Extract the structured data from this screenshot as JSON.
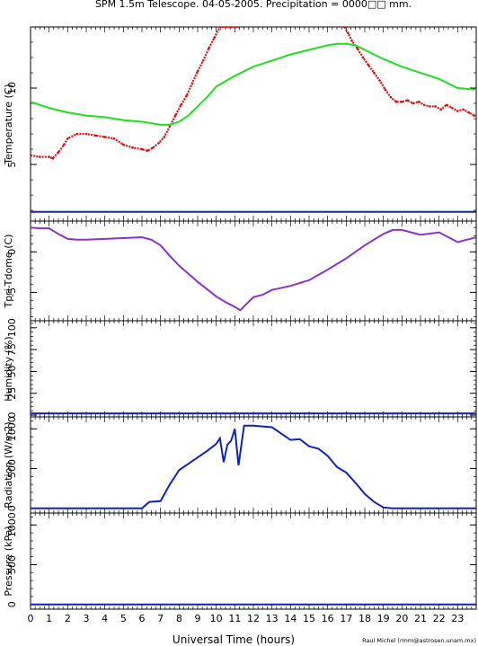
{
  "title": "SPM 1.5m Telescope. 04-05-2005. Precipitation = 0000□□ mm.",
  "credit": "Raul Michel (rmm@astrosen.unam.mx)",
  "xlabel": "Universal Time (hours)",
  "x_ticks": [
    "0",
    "1",
    "2",
    "3",
    "4",
    "5",
    "6",
    "7",
    "8",
    "9",
    "10",
    "11",
    "12",
    "13",
    "14",
    "15",
    "16",
    "17",
    "18",
    "19",
    "20",
    "21",
    "22",
    "23"
  ],
  "colors": {
    "red": "#dd1111",
    "green": "#22dd22",
    "blue": "#1122bb",
    "purple": "#8833cc",
    "axis": "#000000"
  },
  "chart_data": [
    {
      "type": "line",
      "ylabel": "Temperature (C)",
      "xlim": [
        0,
        24
      ],
      "ylim": [
        1.3,
        14
      ],
      "y_ticks": [
        "5",
        "10"
      ],
      "series": [
        {
          "color": "red",
          "style": "dots",
          "x": [
            0.0,
            0.5,
            1.0,
            1.2,
            1.5,
            1.8,
            2.0,
            2.5,
            3.0,
            3.5,
            4.0,
            4.5,
            5.0,
            5.5,
            6.0,
            6.3,
            6.6,
            6.9,
            7.2,
            7.5,
            7.8,
            8.1,
            8.4,
            8.7,
            9.0,
            9.3,
            9.6,
            9.9,
            10.2,
            10.5,
            10.8,
            11.1
          ],
          "y": [
            5.6,
            5.5,
            5.5,
            5.4,
            5.8,
            6.3,
            6.7,
            7.0,
            7.0,
            6.9,
            6.8,
            6.7,
            6.3,
            6.1,
            6.0,
            5.9,
            6.1,
            6.4,
            6.8,
            7.5,
            8.2,
            8.9,
            9.5,
            10.3,
            11.1,
            11.8,
            12.6,
            13.3,
            14.0,
            14.0,
            14.0,
            14.0
          ]
        },
        {
          "color": "red",
          "style": "dots",
          "x": [
            16.9,
            17.1,
            17.3,
            17.6,
            17.9,
            18.2,
            18.5,
            18.8,
            19.1,
            19.4,
            19.7,
            20.0,
            20.3,
            20.6,
            20.9,
            21.2,
            21.5,
            21.8,
            22.1,
            22.4,
            22.7,
            23.0,
            23.3,
            23.6,
            23.9
          ],
          "y": [
            14.0,
            13.6,
            13.1,
            12.6,
            12.0,
            11.5,
            11.0,
            10.5,
            9.9,
            9.4,
            9.1,
            9.1,
            9.2,
            9.0,
            9.1,
            8.9,
            8.8,
            8.8,
            8.6,
            8.9,
            8.7,
            8.5,
            8.6,
            8.4,
            8.2
          ]
        },
        {
          "color": "green",
          "style": "line",
          "x": [
            0,
            1,
            2,
            3,
            4,
            5,
            6,
            7,
            7.5,
            8,
            8.5,
            9,
            9.5,
            10,
            11,
            12,
            13,
            14,
            15,
            16,
            16.5,
            17,
            17.5,
            18,
            19,
            20,
            21,
            22,
            23,
            24
          ],
          "y": [
            9.1,
            8.7,
            8.4,
            8.2,
            8.1,
            7.9,
            7.8,
            7.6,
            7.6,
            7.8,
            8.2,
            8.8,
            9.4,
            10.1,
            10.8,
            11.4,
            11.8,
            12.2,
            12.5,
            12.8,
            12.9,
            12.9,
            12.8,
            12.5,
            11.9,
            11.4,
            11.0,
            10.6,
            10.0,
            9.9
          ]
        },
        {
          "color": "blue",
          "style": "line",
          "x": [
            0,
            24
          ],
          "y": [
            1.9,
            1.9
          ]
        }
      ]
    },
    {
      "type": "line",
      "ylabel": "Tpri-Tdome (C)",
      "xlim": [
        0,
        24
      ],
      "ylim": [
        -8.5,
        3.8
      ],
      "y_ticks": [
        "-5",
        "0"
      ],
      "series": [
        {
          "color": "purple",
          "style": "line",
          "x": [
            0,
            0.5,
            1,
            1.5,
            2,
            2.5,
            3,
            4,
            5,
            6,
            6.5,
            7,
            7.5,
            8,
            8.5,
            9,
            9.5,
            10,
            10.5,
            11,
            11.3,
            11.6,
            12,
            12.5,
            13,
            14,
            15,
            16,
            17,
            18,
            19,
            19.5,
            20,
            21,
            22,
            23,
            24
          ],
          "y": [
            3.0,
            2.9,
            2.9,
            2.2,
            1.6,
            1.5,
            1.5,
            1.6,
            1.7,
            1.8,
            1.5,
            0.8,
            -0.5,
            -1.7,
            -2.7,
            -3.7,
            -4.6,
            -5.5,
            -6.2,
            -6.8,
            -7.2,
            -6.5,
            -5.6,
            -5.3,
            -4.7,
            -4.2,
            -3.5,
            -2.2,
            -0.8,
            0.8,
            2.2,
            2.7,
            2.7,
            2.1,
            2.4,
            1.2,
            1.8
          ]
        }
      ]
    },
    {
      "type": "line",
      "ylabel": "Humidity (%)",
      "xlim": [
        0,
        24
      ],
      "ylim": [
        -2,
        108
      ],
      "y_ticks": [
        "0",
        "25",
        "50",
        "75",
        "100"
      ],
      "series": [
        {
          "color": "blue",
          "style": "line",
          "x": [
            0,
            24
          ],
          "y": [
            2,
            2
          ]
        }
      ]
    },
    {
      "type": "line",
      "ylabel": "Radiation (W/m2)",
      "xlim": [
        0,
        24
      ],
      "ylim": [
        -60,
        1150
      ],
      "y_ticks": [
        "0",
        "500",
        "1000"
      ],
      "series": [
        {
          "color": "blue",
          "style": "line",
          "x": [
            0,
            6.0,
            6.4,
            7.0,
            7.5,
            8.0,
            8.5,
            9.0,
            9.5,
            10.0,
            10.2,
            10.4,
            10.6,
            10.8,
            11.0,
            11.2,
            11.5,
            12.0,
            13.0,
            14.0,
            14.5,
            15.0,
            15.5,
            16.0,
            16.5,
            17.0,
            17.5,
            18.0,
            18.5,
            19.0,
            19.5,
            24
          ],
          "y": [
            0,
            0,
            80,
            90,
            300,
            480,
            560,
            640,
            720,
            810,
            880,
            580,
            800,
            850,
            1000,
            540,
            1040,
            1040,
            1020,
            860,
            870,
            780,
            750,
            660,
            520,
            450,
            320,
            180,
            80,
            10,
            0,
            0
          ]
        }
      ]
    },
    {
      "type": "line",
      "ylabel": "Pressure (kPa)",
      "xlim": [
        0,
        24
      ],
      "ylim": [
        -60,
        1150
      ],
      "y_ticks": [
        "0",
        "500",
        "1000"
      ],
      "series": [
        {
          "color": "blue",
          "style": "line",
          "x": [
            0,
            24
          ],
          "y": [
            0,
            0
          ]
        }
      ]
    }
  ]
}
